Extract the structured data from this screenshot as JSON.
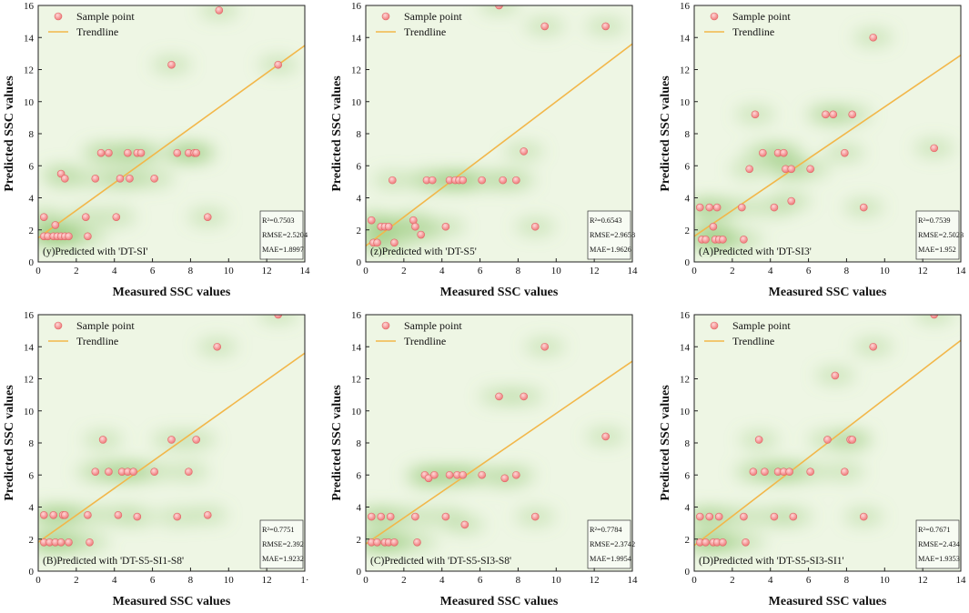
{
  "figure": {
    "legend_sample": "Sample point",
    "legend_trend": "Trendline",
    "point_color": "#ef7a7a",
    "trend_color": "#f2b74a",
    "density_color": "#8cc46e",
    "background_color": "#eef6e4"
  },
  "chart_data": [
    {
      "type": "scatter",
      "title": "(y)Predicted with 'DT-SI'",
      "xlabel": "Measured SSC values",
      "ylabel": "Predicted SSC values",
      "xlim": [
        0,
        14
      ],
      "ylim": [
        0,
        16
      ],
      "xticks": [
        "0",
        "2",
        "4",
        "6",
        "8",
        "10",
        "12",
        "14"
      ],
      "yticks": [
        "0",
        "2",
        "4",
        "6",
        "8",
        "10",
        "12",
        "14",
        "16"
      ],
      "stats": [
        "R²=0.7503",
        "RMSE=2.5204",
        "MAE=1.8997"
      ],
      "trendline": {
        "x": [
          0,
          14
        ],
        "y": [
          1.5,
          13.5
        ]
      },
      "points": [
        [
          0.3,
          1.6
        ],
        [
          0.5,
          1.6
        ],
        [
          0.8,
          1.6
        ],
        [
          1.0,
          1.6
        ],
        [
          1.2,
          1.6
        ],
        [
          1.4,
          1.6
        ],
        [
          1.6,
          1.6
        ],
        [
          2.6,
          1.6
        ],
        [
          0.3,
          2.8
        ],
        [
          0.9,
          2.3
        ],
        [
          1.2,
          5.5
        ],
        [
          1.4,
          5.2
        ],
        [
          2.5,
          2.8
        ],
        [
          3.0,
          5.2
        ],
        [
          3.3,
          6.8
        ],
        [
          3.7,
          6.8
        ],
        [
          4.1,
          2.8
        ],
        [
          4.3,
          5.2
        ],
        [
          4.7,
          6.8
        ],
        [
          4.8,
          5.2
        ],
        [
          5.2,
          6.8
        ],
        [
          5.4,
          6.8
        ],
        [
          6.1,
          5.2
        ],
        [
          7.0,
          12.3
        ],
        [
          7.3,
          6.8
        ],
        [
          7.9,
          6.8
        ],
        [
          8.2,
          6.8
        ],
        [
          8.3,
          6.8
        ],
        [
          8.9,
          2.8
        ],
        [
          9.5,
          15.7
        ],
        [
          12.6,
          12.3
        ]
      ]
    },
    {
      "type": "scatter",
      "title": "(z)Predicted with 'DT-S5'",
      "xlabel": "Measured SSC values",
      "ylabel": "Predicted SSC values",
      "xlim": [
        0,
        14
      ],
      "ylim": [
        0,
        16
      ],
      "xticks": [
        "0",
        "2",
        "4",
        "6",
        "8",
        "10",
        "12",
        "14"
      ],
      "yticks": [
        "0",
        "2",
        "4",
        "6",
        "8",
        "10",
        "12",
        "14",
        "16"
      ],
      "stats": [
        "R²=0.6543",
        "RMSE=2.9658",
        "MAE=1.9626"
      ],
      "trendline": {
        "x": [
          0,
          14
        ],
        "y": [
          1.0,
          13.6
        ]
      },
      "points": [
        [
          0.3,
          2.6
        ],
        [
          0.4,
          1.2
        ],
        [
          0.6,
          1.2
        ],
        [
          0.8,
          2.2
        ],
        [
          1.0,
          2.2
        ],
        [
          1.2,
          2.2
        ],
        [
          1.4,
          5.1
        ],
        [
          1.5,
          1.2
        ],
        [
          2.5,
          2.6
        ],
        [
          2.6,
          2.2
        ],
        [
          2.9,
          1.7
        ],
        [
          3.2,
          5.1
        ],
        [
          3.5,
          5.1
        ],
        [
          4.2,
          2.2
        ],
        [
          4.4,
          5.1
        ],
        [
          4.7,
          5.1
        ],
        [
          4.9,
          5.1
        ],
        [
          5.1,
          5.1
        ],
        [
          6.1,
          5.1
        ],
        [
          7.2,
          5.1
        ],
        [
          7.9,
          5.1
        ],
        [
          8.3,
          6.9
        ],
        [
          8.9,
          2.2
        ],
        [
          9.4,
          14.7
        ],
        [
          12.6,
          14.7
        ],
        [
          7.0,
          16.0
        ]
      ]
    },
    {
      "type": "scatter",
      "title": "(A)Predicted with 'DT-SI3'",
      "xlabel": "Measured SSC values",
      "ylabel": "Predicted SSC values",
      "xlim": [
        0,
        14
      ],
      "ylim": [
        0,
        16
      ],
      "xticks": [
        "0",
        "2",
        "4",
        "6",
        "8",
        "10",
        "12",
        "14"
      ],
      "yticks": [
        "0",
        "2",
        "4",
        "6",
        "8",
        "10",
        "12",
        "14",
        "16"
      ],
      "stats": [
        "R²=0.7539",
        "RMSE=2.5023",
        "MAE=1.952"
      ],
      "trendline": {
        "x": [
          0,
          14
        ],
        "y": [
          1.6,
          12.9
        ]
      },
      "points": [
        [
          0.3,
          3.4
        ],
        [
          0.4,
          1.4
        ],
        [
          0.6,
          1.4
        ],
        [
          0.8,
          3.4
        ],
        [
          1.0,
          2.2
        ],
        [
          1.1,
          1.4
        ],
        [
          1.2,
          3.4
        ],
        [
          1.3,
          1.4
        ],
        [
          1.5,
          1.4
        ],
        [
          2.5,
          3.4
        ],
        [
          2.6,
          1.4
        ],
        [
          2.9,
          5.8
        ],
        [
          3.2,
          9.2
        ],
        [
          3.6,
          6.8
        ],
        [
          4.2,
          3.4
        ],
        [
          4.4,
          6.8
        ],
        [
          4.7,
          6.8
        ],
        [
          4.8,
          5.8
        ],
        [
          5.1,
          5.8
        ],
        [
          5.1,
          3.8
        ],
        [
          6.1,
          5.8
        ],
        [
          6.9,
          9.2
        ],
        [
          7.3,
          9.2
        ],
        [
          7.9,
          6.8
        ],
        [
          8.3,
          9.2
        ],
        [
          8.9,
          3.4
        ],
        [
          9.4,
          14.0
        ],
        [
          12.6,
          7.1
        ]
      ]
    },
    {
      "type": "scatter",
      "title": "(B)Predicted with 'DT-S5-SI1-S8'",
      "xlabel": "Measured SSC values",
      "ylabel": "Predicted SSC values",
      "xlim": [
        0,
        14
      ],
      "ylim": [
        0,
        16
      ],
      "xticks": [
        "0",
        "2",
        "4",
        "6",
        "8",
        "10",
        "12",
        "1·"
      ],
      "yticks": [
        "0",
        "2",
        "4",
        "6",
        "8",
        "10",
        "12",
        "14",
        "16"
      ],
      "stats": [
        "R²=0.7751",
        "RMSE=2.392",
        "MAE=1.9232"
      ],
      "trendline": {
        "x": [
          0,
          14
        ],
        "y": [
          1.8,
          13.6
        ]
      },
      "points": [
        [
          0.3,
          3.5
        ],
        [
          0.3,
          1.8
        ],
        [
          0.6,
          1.8
        ],
        [
          0.8,
          3.5
        ],
        [
          0.9,
          1.8
        ],
        [
          1.2,
          1.8
        ],
        [
          1.3,
          3.5
        ],
        [
          1.4,
          3.5
        ],
        [
          1.6,
          1.8
        ],
        [
          2.6,
          3.5
        ],
        [
          2.7,
          1.8
        ],
        [
          3.0,
          6.2
        ],
        [
          3.4,
          8.2
        ],
        [
          3.7,
          6.2
        ],
        [
          4.2,
          3.5
        ],
        [
          4.4,
          6.2
        ],
        [
          4.7,
          6.2
        ],
        [
          5.0,
          6.2
        ],
        [
          5.2,
          3.4
        ],
        [
          6.1,
          6.2
        ],
        [
          7.0,
          8.2
        ],
        [
          7.3,
          3.4
        ],
        [
          7.9,
          6.2
        ],
        [
          8.3,
          8.2
        ],
        [
          8.9,
          3.5
        ],
        [
          9.4,
          14.0
        ],
        [
          12.6,
          16.0
        ]
      ]
    },
    {
      "type": "scatter",
      "title": "(C)Predicted with 'DT-S5-SI3-S8'",
      "xlabel": "Measured SSC values",
      "ylabel": "Predicted SSC values",
      "xlim": [
        0,
        14
      ],
      "ylim": [
        0,
        16
      ],
      "xticks": [
        "0",
        "2",
        "4",
        "6",
        "8",
        "10",
        "12",
        "14"
      ],
      "yticks": [
        "0",
        "2",
        "4",
        "6",
        "8",
        "10",
        "12",
        "14",
        "16"
      ],
      "stats": [
        "R²=0.7784",
        "RMSE=2.3742",
        "MAE=1.9954"
      ],
      "trendline": {
        "x": [
          0,
          14
        ],
        "y": [
          1.7,
          13.1
        ]
      },
      "points": [
        [
          0.3,
          3.4
        ],
        [
          0.3,
          1.8
        ],
        [
          0.6,
          1.8
        ],
        [
          0.8,
          3.4
        ],
        [
          1.0,
          1.8
        ],
        [
          1.2,
          1.8
        ],
        [
          1.3,
          3.4
        ],
        [
          1.5,
          1.8
        ],
        [
          2.6,
          3.4
        ],
        [
          2.7,
          1.8
        ],
        [
          3.1,
          6.0
        ],
        [
          3.3,
          5.8
        ],
        [
          3.6,
          6.0
        ],
        [
          4.2,
          3.4
        ],
        [
          4.4,
          6.0
        ],
        [
          4.8,
          6.0
        ],
        [
          5.1,
          6.0
        ],
        [
          5.2,
          2.9
        ],
        [
          6.1,
          6.0
        ],
        [
          7.0,
          10.9
        ],
        [
          7.3,
          5.8
        ],
        [
          7.9,
          6.0
        ],
        [
          8.3,
          10.9
        ],
        [
          8.9,
          3.4
        ],
        [
          9.4,
          14.0
        ],
        [
          12.6,
          8.4
        ]
      ]
    },
    {
      "type": "scatter",
      "title": "(D)Predicted with 'DT-S5-SI3-SI1'",
      "xlabel": "Measured SSC values",
      "ylabel": "Predicted SSC values",
      "xlim": [
        0,
        14
      ],
      "ylim": [
        0,
        16
      ],
      "xticks": [
        "0",
        "2",
        "4",
        "6",
        "8",
        "10",
        "12",
        "14"
      ],
      "yticks": [
        "0",
        "2",
        "4",
        "6",
        "8",
        "10",
        "12",
        "14",
        "16"
      ],
      "stats": [
        "R²=0.7671",
        "RMSE=2.434",
        "MAE=1.9353"
      ],
      "trendline": {
        "x": [
          0,
          14
        ],
        "y": [
          1.6,
          14.4
        ]
      },
      "points": [
        [
          0.3,
          3.4
        ],
        [
          0.3,
          1.8
        ],
        [
          0.6,
          1.8
        ],
        [
          0.8,
          3.4
        ],
        [
          1.0,
          1.8
        ],
        [
          1.2,
          1.8
        ],
        [
          1.3,
          3.4
        ],
        [
          1.5,
          1.8
        ],
        [
          2.6,
          3.4
        ],
        [
          2.7,
          1.8
        ],
        [
          3.1,
          6.2
        ],
        [
          3.4,
          8.2
        ],
        [
          3.7,
          6.2
        ],
        [
          4.2,
          3.4
        ],
        [
          4.4,
          6.2
        ],
        [
          4.7,
          6.2
        ],
        [
          5.0,
          6.2
        ],
        [
          5.2,
          3.4
        ],
        [
          6.1,
          6.2
        ],
        [
          7.0,
          8.2
        ],
        [
          7.4,
          12.2
        ],
        [
          7.9,
          6.2
        ],
        [
          8.2,
          8.2
        ],
        [
          8.3,
          8.2
        ],
        [
          8.9,
          3.4
        ],
        [
          9.4,
          14.0
        ],
        [
          12.6,
          16.0
        ]
      ]
    }
  ]
}
